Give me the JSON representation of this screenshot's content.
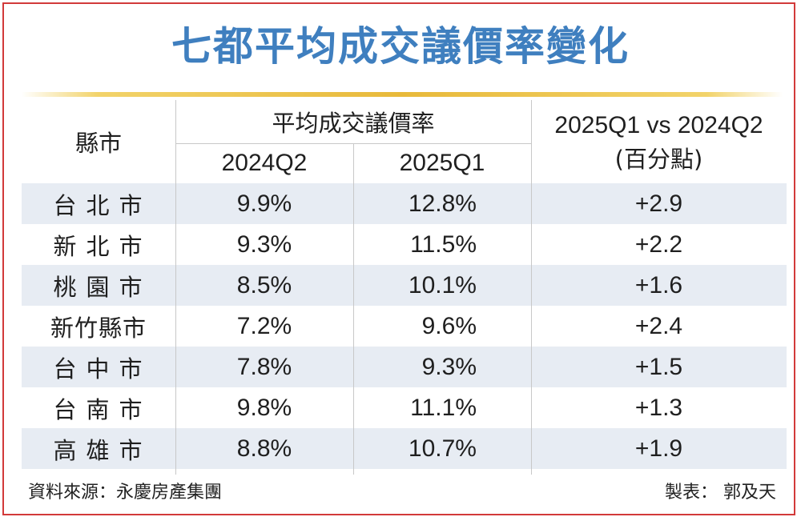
{
  "title": "七都平均成交議價率變化",
  "headers": {
    "city": "縣市",
    "group": "平均成交議價率",
    "col1": "2024Q2",
    "col2": "2025Q1",
    "diff_line1": "2025Q1 vs 2024Q2",
    "diff_line2": "(百分點)"
  },
  "rows": [
    {
      "city": "台北市",
      "q2024": "9.9%",
      "q2025": "12.8%",
      "diff": "+2.9"
    },
    {
      "city": "新北市",
      "q2024": "9.3%",
      "q2025": "11.5%",
      "diff": "+2.2"
    },
    {
      "city": "桃園市",
      "q2024": "8.5%",
      "q2025": "10.1%",
      "diff": "+1.6"
    },
    {
      "city": "新竹縣市",
      "q2024": "7.2%",
      "q2025": "9.6%",
      "diff": "+2.4"
    },
    {
      "city": "台中市",
      "q2024": "7.8%",
      "q2025": "9.3%",
      "diff": "+1.5"
    },
    {
      "city": "台南市",
      "q2024": "9.8%",
      "q2025": "11.1%",
      "diff": "+1.3"
    },
    {
      "city": "高雄市",
      "q2024": "8.8%",
      "q2025": "10.7%",
      "diff": "+1.9"
    }
  ],
  "footer": {
    "source": "資料來源：永慶房產集團",
    "credit": "製表： 郭及天"
  },
  "colors": {
    "title": "#3f7fbf",
    "border": "#d23a3a",
    "row_shade": "#e7ecf3",
    "rule": "#e8b93a"
  }
}
